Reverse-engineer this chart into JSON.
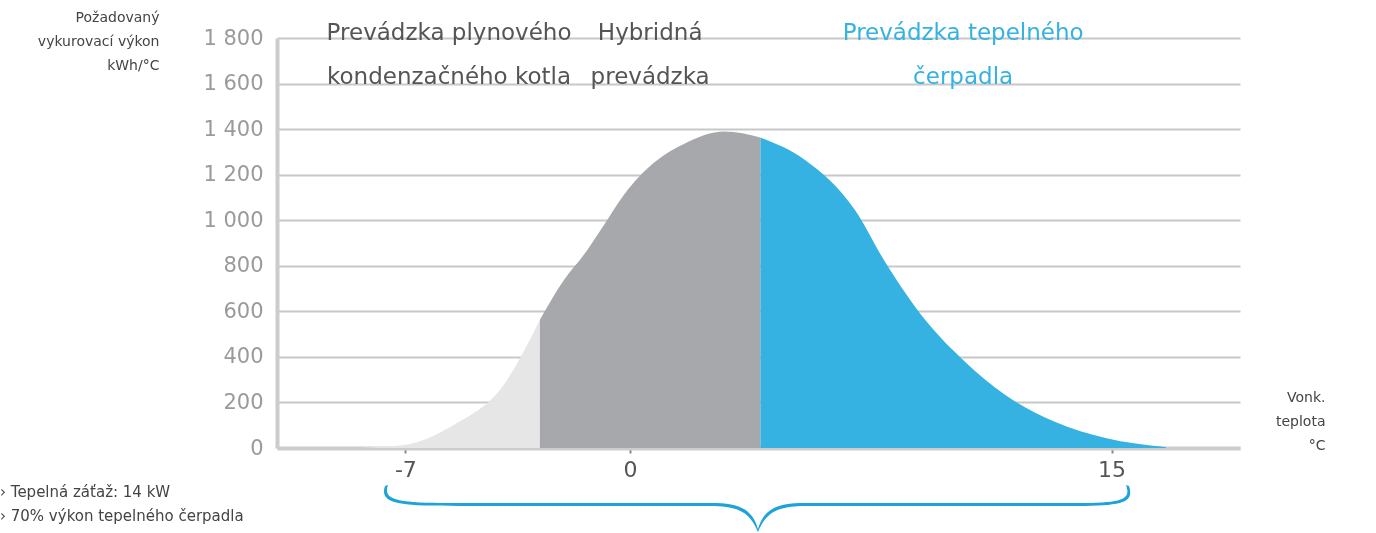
{
  "chart_data": {
    "type": "area",
    "xlabel": "Vonk. teplota °C",
    "ylabel": "Požadovaný vykurovací výkon kWh/°C",
    "xlim": [
      -11,
      19
    ],
    "xticks": [
      -7,
      0,
      15
    ],
    "ylim": [
      0,
      1800
    ],
    "yticks": [
      0,
      200,
      400,
      600,
      800,
      {
        "value": 1000,
        "label": "1 000"
      },
      {
        "value": 1200,
        "label": "1 200"
      },
      {
        "value": 1400,
        "label": "1 400"
      },
      {
        "value": 1600,
        "label": "1 600"
      },
      {
        "value": 1800,
        "label": "1 800"
      }
    ],
    "grid": "y",
    "series": [
      {
        "color": "#e6e6e6",
        "x": [
          -8.47,
          -7.06,
          -5.5,
          -3.94,
          -2.81
        ],
        "values": [
          0,
          13,
          101,
          277,
          563
        ]
      },
      {
        "name": "Hybridná prevádzka",
        "color": "#a7a8ab",
        "x": [
          -2.81,
          -2.06,
          -1.44,
          -0.81,
          -0.19,
          0.75,
          1.69,
          2.94,
          4.06
        ],
        "values": [
          563,
          738,
          848,
          980,
          1112,
          1253,
          1336,
          1389,
          1363
        ]
      },
      {
        "name": "Prevádzka tepelného čerpadla",
        "color": "#35b2e2",
        "x": [
          4.06,
          5.44,
          7.0,
          7.94,
          9.19,
          10.44,
          11.69,
          13.25,
          14.81,
          16.69
        ],
        "values": [
          1363,
          1266,
          1046,
          818,
          563,
          378,
          233,
          114,
          44,
          4
        ]
      }
    ],
    "annotations": [
      "Prevádzka plynového kondenzačného kotla",
      "› Tepelná záťaž: 14 kW",
      "› 70% výkon tepelného čerpadla"
    ]
  }
}
